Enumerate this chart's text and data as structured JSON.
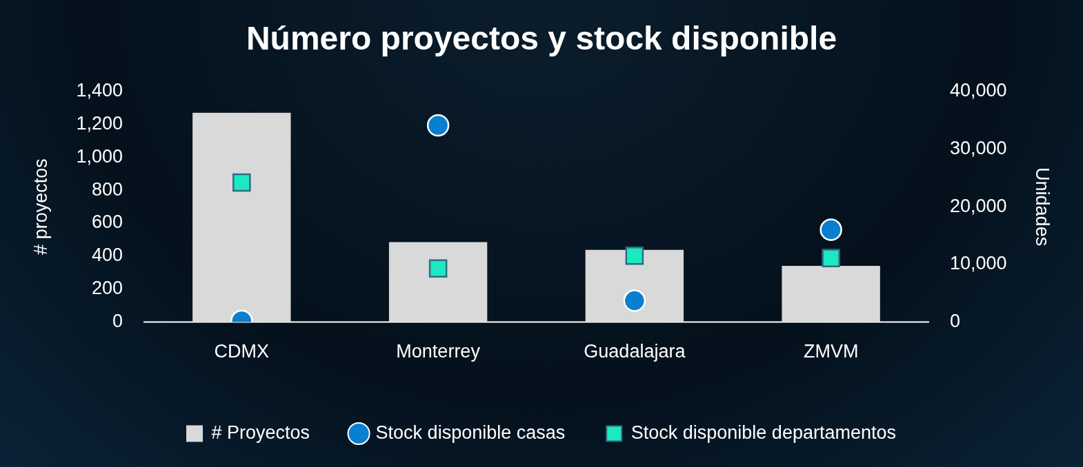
{
  "chart_data": {
    "type": "bar",
    "title": "Número proyectos y stock disponible",
    "ylabel": "# proyectos",
    "y2label": "Unidades",
    "categories": [
      "CDMX",
      "Monterrey",
      "Guadalajara",
      "ZMVM"
    ],
    "series": [
      {
        "name": "# Proyectos",
        "color": "#d9d9d9",
        "values": [
          1270,
          485,
          438,
          341
        ]
      },
      {
        "name": "Stock disponible casas",
        "type": "scatter",
        "axis": "y2",
        "marker": "circle",
        "color": "#0a7fd0",
        "values": [
          200,
          34100,
          3700,
          16000
        ]
      },
      {
        "name": "Stock disponible departamentos",
        "type": "scatter",
        "axis": "y2",
        "marker": "square",
        "color": "#1de9c0",
        "values": [
          24200,
          9300,
          11500,
          11100
        ]
      }
    ],
    "ylim": [
      0,
      1400
    ],
    "yticks": [
      0,
      200,
      400,
      600,
      800,
      {
        "value": 1000,
        "label": "1,000"
      },
      {
        "value": 1200,
        "label": "1,200"
      },
      {
        "value": 1400,
        "label": "1,400"
      }
    ],
    "y2lim": [
      0,
      40000
    ],
    "y2ticks": [
      0,
      {
        "value": 10000,
        "label": "10,000"
      },
      {
        "value": 20000,
        "label": "20,000"
      },
      {
        "value": 30000,
        "label": "30,000"
      },
      {
        "value": 40000,
        "label": "40,000"
      }
    ],
    "grid": false,
    "legend": "bottom"
  }
}
